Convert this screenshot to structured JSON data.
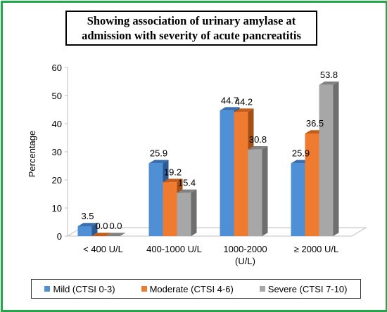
{
  "chart_data": {
    "type": "bar",
    "title_lines": [
      "Showing association of urinary amylase at",
      "admission with severity of acute pancreatitis"
    ],
    "xlabel": "",
    "ylabel": "Percentage",
    "ylim": [
      0,
      60
    ],
    "yticks": [
      "0",
      "10",
      "20",
      "30",
      "40",
      "50",
      "60"
    ],
    "categories": [
      {
        "line1": "< 400 U/L",
        "line2": ""
      },
      {
        "line1": "400-1000 U/L",
        "line2": ""
      },
      {
        "line1": "1000-2000",
        "line2": "(U/L)"
      },
      {
        "line1": "≥ 2000 U/L",
        "line2": ""
      }
    ],
    "series": [
      {
        "name": "Mild (CTSI 0-3)",
        "values": [
          3.5,
          25.9,
          44.7,
          25.9
        ],
        "labels": [
          "3.5",
          "25.9",
          "44.7",
          "25.9"
        ],
        "color": "#4f8fd6",
        "top": "#3a70b0",
        "side": "#2e5a92"
      },
      {
        "name": "Moderate (CTSI 4-6)",
        "values": [
          0.0,
          19.2,
          44.2,
          36.5
        ],
        "labels": [
          "0.0",
          "19.2",
          "44.2",
          "36.5"
        ],
        "color": "#ee7b30",
        "top": "#c25d1c",
        "side": "#a34f16"
      },
      {
        "name": "Severe (CTSI 7-10)",
        "values": [
          0.0,
          15.4,
          30.8,
          53.8
        ],
        "labels": [
          "0.0",
          "15.4",
          "30.8",
          "53.8"
        ],
        "color": "#a7a7a7",
        "top": "#828282",
        "side": "#6e6e6e"
      }
    ],
    "grid": false,
    "legend_position": "bottom"
  }
}
